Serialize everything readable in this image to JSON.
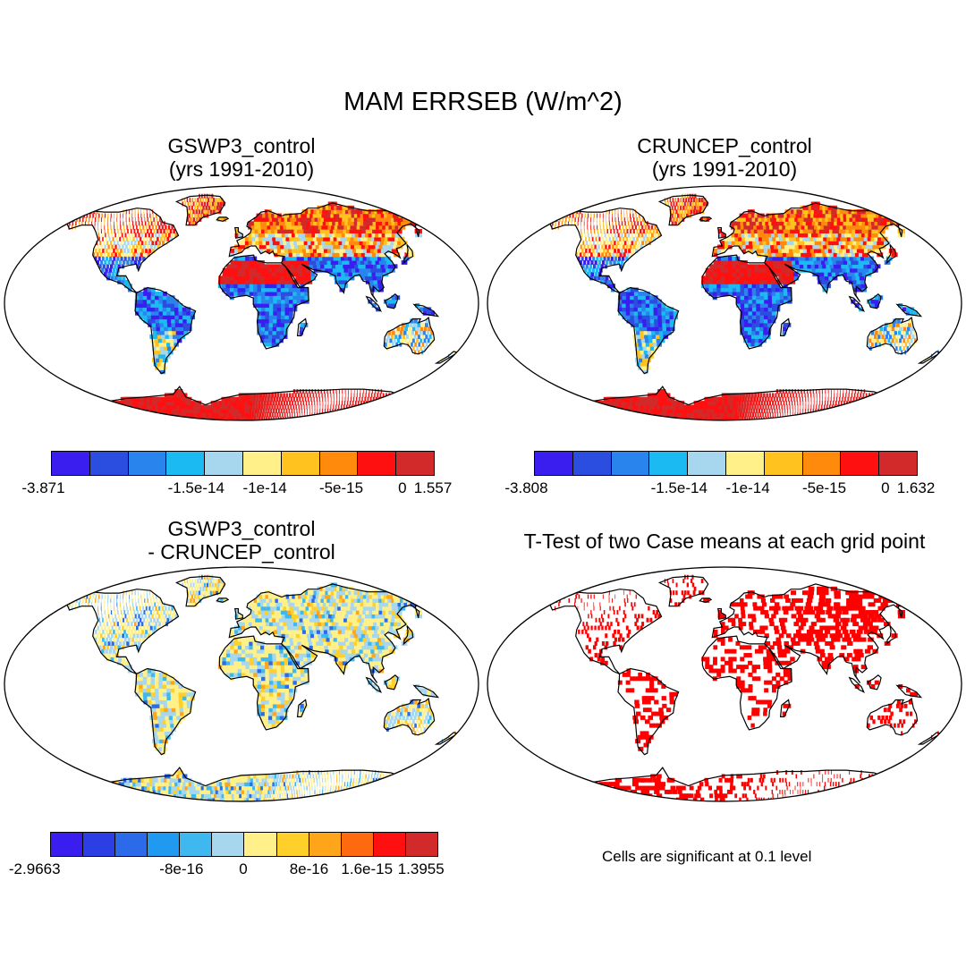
{
  "title": "MAM ERRSEB (W/m^2)",
  "panels": {
    "gswp3": {
      "title_line1": "GSWP3_control",
      "title_line2": "(yrs 1991-2010)"
    },
    "cruncep": {
      "title_line1": "CRUNCEP_control",
      "title_line2": "(yrs 1991-2010)"
    },
    "diff": {
      "title_line1": "GSWP3_control",
      "title_line2": "- CRUNCEP_control"
    },
    "ttest": {
      "title": "T-Test of two Case means at each grid point",
      "note": "Cells are significant at 0.1 level"
    }
  },
  "colorbars": {
    "abs": {
      "colors": [
        "#3a1ef0",
        "#2c4ee0",
        "#2a84ee",
        "#1cbaf2",
        "#a6d7ef",
        "#fff08a",
        "#ffc21e",
        "#ff8a0c",
        "#ff1010",
        "#d22a2a"
      ],
      "left_labels": [
        "-3.871",
        "-1.5e-14",
        "-1e-14",
        "-5e-15",
        "0",
        "1.557"
      ],
      "right_labels": [
        "-3.808",
        "-1.5e-14",
        "-1e-14",
        "-5e-15",
        "0",
        "1.632"
      ]
    },
    "diff": {
      "colors": [
        "#3a1ef0",
        "#2c3fe4",
        "#2b6ae8",
        "#1f9af0",
        "#3fb8f0",
        "#a6d7ef",
        "#fff08a",
        "#ffcf2a",
        "#ffa51a",
        "#ff6a10",
        "#ff1010",
        "#d22a2a"
      ],
      "labels": [
        "-2.9663",
        "-8e-16",
        "0",
        "8e-16",
        "1.6e-15",
        "1.3955"
      ]
    }
  }
}
